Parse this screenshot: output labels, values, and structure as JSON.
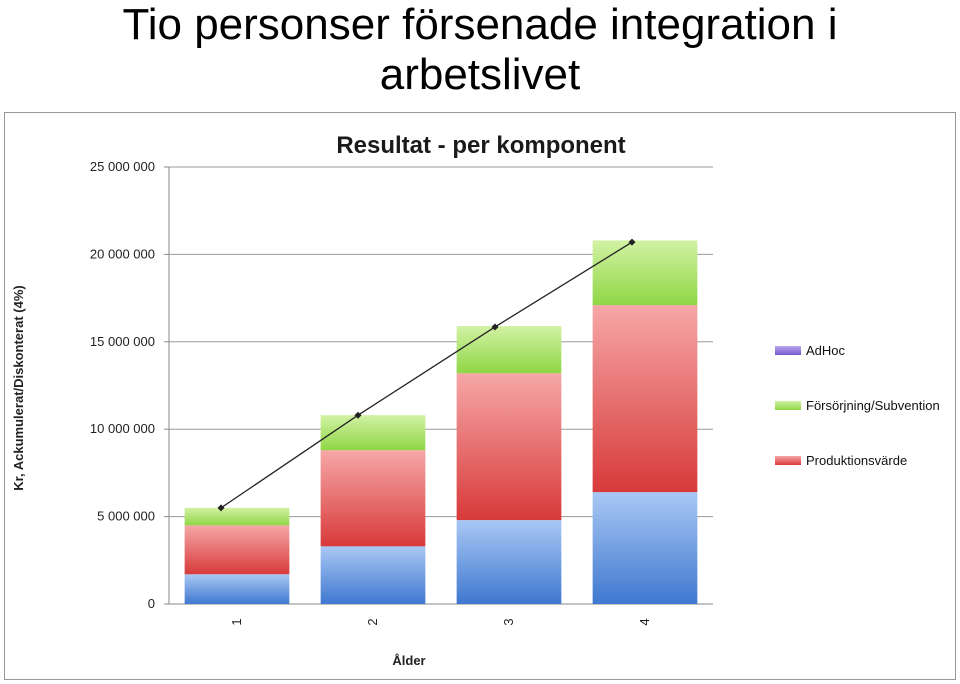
{
  "slide": {
    "title_line1": "Tio personser försenade integration i",
    "title_line2": "arbetslivet"
  },
  "chart_data": {
    "type": "bar",
    "stacked": true,
    "title": "Resultat - per komponent",
    "xlabel": "Ålder",
    "ylabel": "Kr, Ackumulerat/Diskonterat (4%)",
    "ylim": [
      0,
      25000000
    ],
    "yticks": [
      "0",
      "5 000 000",
      "10 000 000",
      "15 000 000",
      "20 000 000",
      "25 000 000"
    ],
    "ytick_values": [
      0,
      5000000,
      10000000,
      15000000,
      20000000,
      25000000
    ],
    "categories": [
      "1",
      "2",
      "3",
      "4"
    ],
    "grid": true,
    "legend_position": "right",
    "series": [
      {
        "name": "",
        "color": "#5b8fdc",
        "values": [
          1700000,
          3300000,
          4800000,
          6400000
        ]
      },
      {
        "name": "Produktionsvärde",
        "color": "#e05050",
        "values": [
          2800000,
          5500000,
          8400000,
          10700000
        ]
      },
      {
        "name": "Försörjning/Subvention",
        "color": "#9edc58",
        "values": [
          1000000,
          2000000,
          2700000,
          3700000
        ]
      },
      {
        "name": "AdHoc",
        "color": "#8a6fd6",
        "values": [
          0,
          0,
          0,
          0
        ]
      }
    ],
    "line": {
      "values": [
        5500000,
        10800000,
        15850000,
        20700000
      ],
      "color": "#222222"
    },
    "legend_order": [
      "AdHoc",
      "Försörjning/Subvention",
      "Produktionsvärde"
    ]
  }
}
